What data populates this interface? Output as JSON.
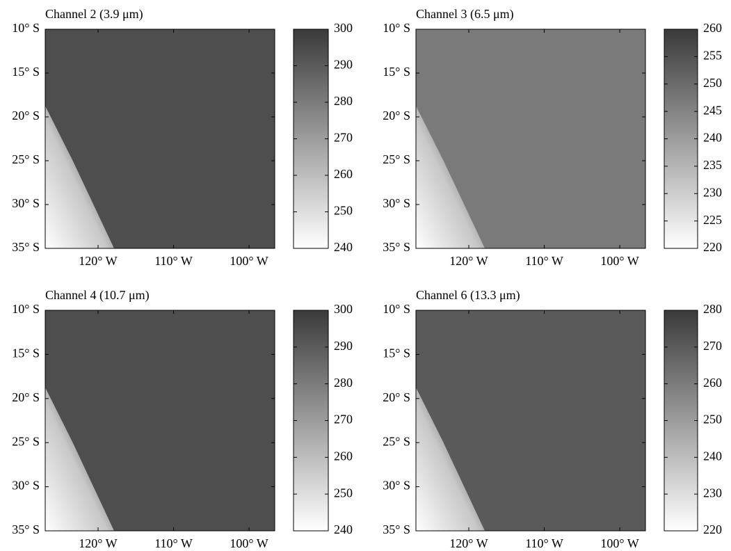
{
  "chart_data": [
    {
      "type": "image",
      "title": "Channel 2 (3.9 μm)",
      "xlim": [
        -127,
        -96.6
      ],
      "xticks": [
        {
          "value": -120,
          "label": "120° W"
        },
        {
          "value": -110,
          "label": "110° W"
        },
        {
          "value": -100,
          "label": "100° W"
        }
      ],
      "ylim": [
        -35,
        -10
      ],
      "yticks": [
        {
          "value": -10,
          "label": "10° S"
        },
        {
          "value": -15,
          "label": "15° S"
        },
        {
          "value": -20,
          "label": "20° S"
        },
        {
          "value": -25,
          "label": "25° S"
        },
        {
          "value": -30,
          "label": "30° S"
        },
        {
          "value": -35,
          "label": "35° S"
        }
      ],
      "clim": [
        240,
        300
      ],
      "cticks": [
        240,
        250,
        260,
        270,
        280,
        290,
        300
      ]
    },
    {
      "type": "image",
      "title": "Channel 3 (6.5 μm)",
      "xlim": [
        -127,
        -96.6
      ],
      "xticks": [
        {
          "value": -120,
          "label": "120° W"
        },
        {
          "value": -110,
          "label": "110° W"
        },
        {
          "value": -100,
          "label": "100° W"
        }
      ],
      "ylim": [
        -35,
        -10
      ],
      "yticks": [
        {
          "value": -10,
          "label": "10° S"
        },
        {
          "value": -15,
          "label": "15° S"
        },
        {
          "value": -20,
          "label": "20° S"
        },
        {
          "value": -25,
          "label": "25° S"
        },
        {
          "value": -30,
          "label": "30° S"
        },
        {
          "value": -35,
          "label": "35° S"
        }
      ],
      "clim": [
        220,
        260
      ],
      "cticks": [
        220,
        225,
        230,
        235,
        240,
        245,
        250,
        255,
        260
      ]
    },
    {
      "type": "image",
      "title": "Channel 4 (10.7 μm)",
      "xlim": [
        -127,
        -96.6
      ],
      "xticks": [
        {
          "value": -120,
          "label": "120° W"
        },
        {
          "value": -110,
          "label": "110° W"
        },
        {
          "value": -100,
          "label": "100° W"
        }
      ],
      "ylim": [
        -35,
        -10
      ],
      "yticks": [
        {
          "value": -10,
          "label": "10° S"
        },
        {
          "value": -15,
          "label": "15° S"
        },
        {
          "value": -20,
          "label": "20° S"
        },
        {
          "value": -25,
          "label": "25° S"
        },
        {
          "value": -30,
          "label": "30° S"
        },
        {
          "value": -35,
          "label": "35° S"
        }
      ],
      "clim": [
        240,
        300
      ],
      "cticks": [
        240,
        250,
        260,
        270,
        280,
        290,
        300
      ]
    },
    {
      "type": "image",
      "title": "Channel 6 (13.3 μm)",
      "xlim": [
        -127,
        -96.6
      ],
      "xticks": [
        {
          "value": -120,
          "label": "120° W"
        },
        {
          "value": -110,
          "label": "110° W"
        },
        {
          "value": -100,
          "label": "100° W"
        }
      ],
      "ylim": [
        -35,
        -10
      ],
      "yticks": [
        {
          "value": -10,
          "label": "10° S"
        },
        {
          "value": -15,
          "label": "15° S"
        },
        {
          "value": -20,
          "label": "20° S"
        },
        {
          "value": -25,
          "label": "25° S"
        },
        {
          "value": -30,
          "label": "30° S"
        },
        {
          "value": -35,
          "label": "35° S"
        }
      ],
      "clim": [
        220,
        280
      ],
      "cticks": [
        220,
        230,
        240,
        250,
        260,
        270,
        280
      ]
    }
  ]
}
